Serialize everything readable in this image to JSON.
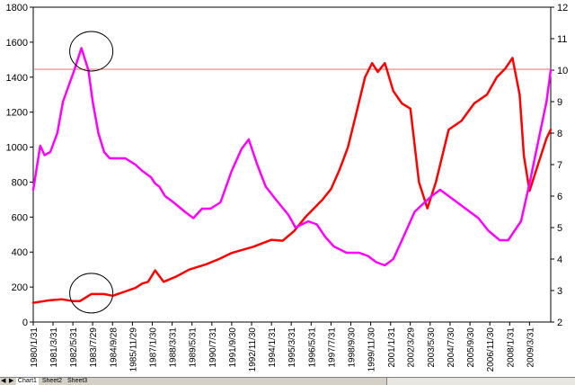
{
  "chart_data": {
    "type": "line",
    "title": "",
    "xlabel": "",
    "ylabel": "",
    "y_left": {
      "lim": [
        0,
        1800
      ],
      "ticks": [
        "0",
        "200",
        "400",
        "600",
        "800",
        "1000",
        "1200",
        "1400",
        "1600",
        "1800"
      ]
    },
    "y_right": {
      "lim": [
        2,
        12
      ],
      "ticks": [
        "2",
        "3",
        "4",
        "5",
        "6",
        "7",
        "8",
        "9",
        "10",
        "11",
        "12"
      ]
    },
    "x_ticks": [
      "1980/1/31",
      "1981/3/31",
      "1982/5/31",
      "1983/7/29",
      "1984/9/28",
      "1985/11/29",
      "1987/1/30",
      "1988/3/31",
      "1989/5/31",
      "1990/7/31",
      "1991/9/30",
      "1992/11/30",
      "1994/1/31",
      "1995/3/31",
      "1996/5/31",
      "1997/7/31",
      "1998/9/30",
      "1999/11/30",
      "2001/1/31",
      "2002/3/29",
      "2003/5/30",
      "2004/7/30",
      "2005/9/30",
      "2006/11/30",
      "2008/1/31",
      "2009/3/31"
    ],
    "x_range": [
      "1980/1/31",
      "2010/6/30"
    ],
    "grid": false,
    "legend": "none",
    "reference_line": {
      "axis": "left",
      "value": 1445,
      "color": "#ff6b6b"
    },
    "annotations": [
      {
        "shape": "ellipse",
        "x": "1983/6/30",
        "axis": "right",
        "y": 10.6
      },
      {
        "shape": "ellipse",
        "x": "1983/6/30",
        "axis": "left",
        "y": 165
      }
    ],
    "series": [
      {
        "axis": "left",
        "color": "#ff0000",
        "x": [
          "1980/1/31",
          "1981/1/31",
          "1981/9/30",
          "1982/5/31",
          "1982/10/31",
          "1983/6/30",
          "1984/3/31",
          "1984/9/30",
          "1985/6/30",
          "1986/1/31",
          "1986/6/30",
          "1986/10/31",
          "1987/3/31",
          "1987/9/30",
          "1988/6/30",
          "1989/3/31",
          "1990/3/31",
          "1990/12/31",
          "1991/9/30",
          "1992/12/31",
          "1994/1/31",
          "1994/9/30",
          "1995/5/31",
          "1996/1/31",
          "1996/7/31",
          "1997/1/31",
          "1997/7/31",
          "1998/1/31",
          "1998/7/31",
          "1999/1/31",
          "1999/7/31",
          "1999/12/31",
          "2000/4/30",
          "2000/9/30",
          "2001/3/31",
          "2001/9/30",
          "2002/3/31",
          "2002/9/30",
          "2003/3/31",
          "2003/9/30",
          "2004/6/30",
          "2005/3/31",
          "2005/12/31",
          "2006/9/30",
          "2007/4/30",
          "2007/10/31",
          "2008/3/31",
          "2008/8/31",
          "2008/11/30",
          "2009/3/31",
          "2009/9/30",
          "2010/3/31",
          "2010/6/30"
        ],
        "values": [
          110,
          125,
          130,
          120,
          120,
          160,
          160,
          150,
          175,
          195,
          220,
          230,
          295,
          230,
          260,
          300,
          330,
          360,
          395,
          430,
          470,
          465,
          520,
          600,
          650,
          700,
          760,
          870,
          1000,
          1200,
          1400,
          1480,
          1430,
          1480,
          1320,
          1250,
          1220,
          800,
          650,
          800,
          1100,
          1150,
          1250,
          1300,
          1400,
          1450,
          1510,
          1300,
          950,
          750,
          900,
          1050,
          1100
        ]
      },
      {
        "axis": "right",
        "color": "#ff00ff",
        "x": [
          "1980/1/31",
          "1980/6/30",
          "1980/9/30",
          "1981/1/31",
          "1981/6/30",
          "1981/10/31",
          "1982/2/28",
          "1982/6/30",
          "1982/11/30",
          "1983/4/30",
          "1983/7/31",
          "1983/11/30",
          "1984/3/31",
          "1984/7/31",
          "1984/11/30",
          "1985/6/30",
          "1986/1/31",
          "1986/6/30",
          "1986/12/31",
          "1987/3/31",
          "1987/6/30",
          "1987/10/31",
          "1988/4/30",
          "1988/12/31",
          "1989/6/30",
          "1989/12/31",
          "1990/6/30",
          "1991/1/31",
          "1991/9/30",
          "1992/4/30",
          "1992/9/30",
          "1993/3/31",
          "1993/9/30",
          "1994/4/30",
          "1995/1/31",
          "1995/6/30",
          "1996/3/31",
          "1996/9/30",
          "1997/3/31",
          "1997/9/30",
          "1998/6/30",
          "1999/3/31",
          "1999/9/30",
          "2000/3/31",
          "2000/9/30",
          "2001/3/31",
          "2001/8/31",
          "2002/1/31",
          "2002/6/30",
          "2003/1/31",
          "2003/6/30",
          "2003/12/31",
          "2004/9/30",
          "2005/6/30",
          "2006/3/31",
          "2006/10/31",
          "2007/6/30",
          "2007/12/31",
          "2008/3/31",
          "2008/9/30",
          "2009/3/31",
          "2009/9/30",
          "2010/3/31",
          "2010/6/30"
        ],
        "values": [
          6.2,
          7.6,
          7.3,
          7.4,
          8.0,
          9.0,
          9.5,
          10.0,
          10.7,
          10.0,
          9.0,
          8.0,
          7.4,
          7.2,
          7.2,
          7.2,
          7.0,
          6.8,
          6.6,
          6.4,
          6.3,
          6.0,
          5.8,
          5.5,
          5.3,
          5.6,
          5.6,
          5.8,
          6.8,
          7.5,
          7.8,
          7.0,
          6.3,
          5.9,
          5.4,
          5.0,
          5.2,
          5.1,
          4.7,
          4.4,
          4.2,
          4.2,
          4.1,
          3.9,
          3.8,
          4.0,
          4.5,
          5.0,
          5.5,
          5.8,
          6.0,
          6.2,
          5.9,
          5.6,
          5.3,
          4.9,
          4.6,
          4.6,
          4.8,
          5.2,
          6.4,
          7.7,
          9.0,
          10.0
        ]
      }
    ]
  },
  "sheet_tabs": {
    "nav": [
      "◀",
      "▶"
    ],
    "tabs": [
      "Chart1",
      "Sheet2",
      "Sheet3"
    ],
    "active": "Chart1"
  }
}
